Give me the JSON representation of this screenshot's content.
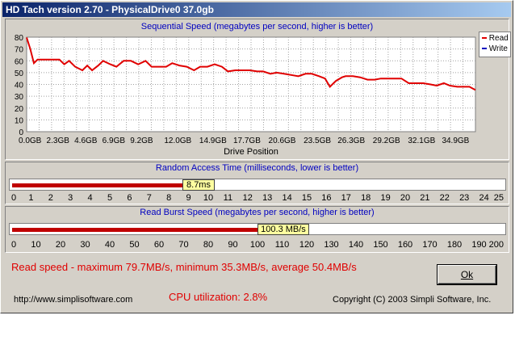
{
  "window": {
    "title": "HD Tach version 2.70 - PhysicalDrive0 37.0gb"
  },
  "sequential": {
    "title": "Sequential Speed (megabytes per second, higher is better)",
    "legend": [
      {
        "label": "Read",
        "color": "#e00000"
      },
      {
        "label": "Write",
        "color": "#0000c0"
      }
    ]
  },
  "random_access": {
    "title": "Random Access Time (milliseconds, lower is better)",
    "value_label": "8.7ms",
    "value": 8.7,
    "max": 25,
    "ticks": [
      "0",
      "1",
      "2",
      "3",
      "4",
      "5",
      "6",
      "7",
      "8",
      "9",
      "10",
      "11",
      "12",
      "13",
      "14",
      "15",
      "16",
      "17",
      "18",
      "19",
      "20",
      "21",
      "22",
      "23",
      "24",
      "25"
    ]
  },
  "burst": {
    "title": "Read Burst Speed (megabytes per second, higher is better)",
    "value_label": "100.3 MB/s",
    "value": 100.3,
    "max": 200,
    "ticks": [
      "0",
      "10",
      "20",
      "30",
      "40",
      "50",
      "60",
      "70",
      "80",
      "90",
      "100",
      "110",
      "120",
      "130",
      "140",
      "150",
      "160",
      "170",
      "180",
      "190",
      "200"
    ]
  },
  "stats": {
    "read_speed": "Read speed - maximum 79.7MB/s, minimum 35.3MB/s, average 50.4MB/s",
    "cpu": "CPU utilization: 2.8%"
  },
  "footer": {
    "website": "http://www.simplisoftware.com",
    "copyright": "Copyright (C) 2003 Simpli Software, Inc."
  },
  "buttons": {
    "ok_label": "Ok"
  },
  "chart_data": {
    "type": "line",
    "title": "Sequential Speed (megabytes per second, higher is better)",
    "xlabel": "Drive Position",
    "ylabel": "",
    "ylim": [
      0,
      80
    ],
    "yticks": [
      "0",
      "10",
      "20",
      "30",
      "40",
      "50",
      "60",
      "70",
      "80"
    ],
    "xticks": [
      "0.0GB",
      "2.3GB",
      "4.6GB",
      "6.9GB",
      "9.2GB",
      "12.0GB",
      "14.9GB",
      "17.7GB",
      "20.6GB",
      "23.5GB",
      "26.3GB",
      "29.2GB",
      "32.1GB",
      "34.9GB"
    ],
    "xlim": [
      0,
      37.0
    ],
    "grid": true,
    "legend_position": "top-right",
    "series": [
      {
        "name": "Read",
        "color": "#e00000",
        "x": [
          0.0,
          0.3,
          0.6,
          0.9,
          1.2,
          1.5,
          1.8,
          2.3,
          2.7,
          3.1,
          3.5,
          4.0,
          4.6,
          5.0,
          5.4,
          5.9,
          6.3,
          6.9,
          7.4,
          8.0,
          8.6,
          9.2,
          9.8,
          10.3,
          10.9,
          11.5,
          12.0,
          12.6,
          13.2,
          13.8,
          14.3,
          14.9,
          15.5,
          16.1,
          16.6,
          17.2,
          17.7,
          18.4,
          19.0,
          19.5,
          20.1,
          20.6,
          21.2,
          21.8,
          22.4,
          23.0,
          23.5,
          24.1,
          24.6,
          25.0,
          25.5,
          26.0,
          26.3,
          26.9,
          27.5,
          28.1,
          28.7,
          29.2,
          29.8,
          30.4,
          30.9,
          31.5,
          32.1,
          32.7,
          33.3,
          33.8,
          34.4,
          34.9,
          35.5,
          36.0,
          36.5,
          37.0
        ],
        "y": [
          79.7,
          70,
          58,
          61,
          61,
          61,
          61,
          61,
          61,
          57,
          60,
          55,
          52,
          56,
          52,
          56,
          60,
          57,
          55,
          60,
          60,
          57,
          60,
          55,
          55,
          55,
          58,
          56,
          55,
          52,
          55,
          55,
          57,
          55,
          51,
          52,
          52,
          52,
          51,
          51,
          49,
          50,
          49,
          48,
          47,
          49,
          49,
          47,
          45,
          38,
          43,
          46,
          47,
          47,
          46,
          44,
          44,
          45,
          45,
          45,
          45,
          41,
          41,
          41,
          40,
          39,
          41,
          39,
          38,
          38,
          38,
          35.3
        ]
      }
    ]
  }
}
